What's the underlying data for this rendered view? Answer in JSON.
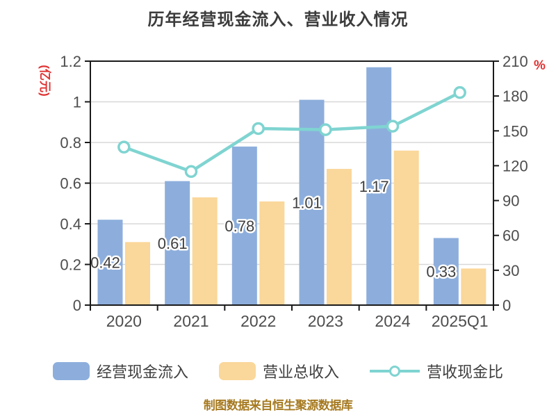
{
  "title": "历年经营现金流入、营业收入情况",
  "footer": "制图数据来自恒生聚源数据库",
  "colors": {
    "bar_cash": "#8DAEDC",
    "bar_revenue": "#FAD79A",
    "line_ratio": "#7FD4D1",
    "axis_unit_red": "#E03232",
    "title_text": "#3C3C3C",
    "tick_text": "#4D4D4D",
    "bar_label_text": "#3F3F3F",
    "gridline": "#D8D8D8",
    "spine": "#1A1A1A",
    "footer_text": "#A6791F",
    "background": "#FFFFFF"
  },
  "chart_data": {
    "type": "bar",
    "subtype": "grouped-bars-with-line",
    "categories": [
      "2020",
      "2021",
      "2022",
      "2023",
      "2024",
      "2025Q1"
    ],
    "series": [
      {
        "name": "经营现金流入",
        "type": "bar",
        "axis": "left",
        "color": "#8DAEDC",
        "values": [
          0.42,
          0.61,
          0.78,
          1.01,
          1.17,
          0.33
        ],
        "labels": [
          "0.42",
          "0.61",
          "0.78",
          "1.01",
          "1.17",
          "0.33"
        ]
      },
      {
        "name": "营业总收入",
        "type": "bar",
        "axis": "left",
        "color": "#FAD79A",
        "values": [
          0.31,
          0.53,
          0.51,
          0.67,
          0.76,
          0.18
        ]
      },
      {
        "name": "营收现金比",
        "type": "line",
        "axis": "right",
        "color": "#7FD4D1",
        "marker": "circle-white-fill",
        "values": [
          136,
          115,
          152,
          151,
          154,
          183
        ]
      }
    ],
    "title": "历年经营现金流入、营业收入情况",
    "left_axis": {
      "label": "(亿元)",
      "min": 0,
      "max": 1.2,
      "step": 0.2,
      "tick_labels": [
        "0",
        "0.2",
        "0.4",
        "0.6",
        "0.8",
        "1",
        "1.2"
      ]
    },
    "right_axis": {
      "label": "%",
      "min": 0,
      "max": 210,
      "step": 30,
      "tick_labels": [
        "0",
        "30",
        "60",
        "90",
        "120",
        "150",
        "180",
        "210"
      ]
    },
    "grid": true,
    "legend_position": "bottom"
  }
}
